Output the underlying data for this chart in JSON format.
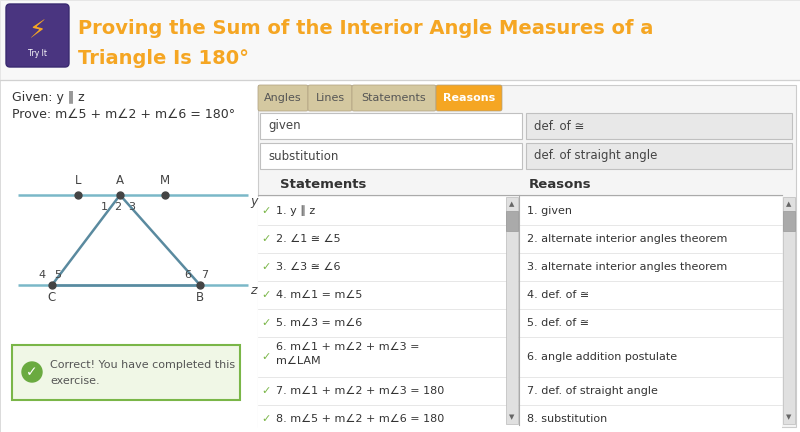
{
  "title_line1": "Proving the Sum of the Interior Angle Measures of a",
  "title_line2": "Triangle Is 180°",
  "title_color": "#f5a623",
  "header_bg": "#f8f8f8",
  "header_border": "#dddddd",
  "given_text": "Given: y ∥ z",
  "prove_text": "Prove: m∠5 + m∠2 + m∠6 = 180°",
  "tab_labels": [
    "Angles",
    "Lines",
    "Statements",
    "Reasons"
  ],
  "tab_active_color": "#f5a623",
  "tab_inactive_color": "#d4c8a0",
  "fill_row1_left": "given",
  "fill_row1_right": "def. of ≅",
  "fill_row2_left": "substitution",
  "fill_row2_right": "def. of straight angle",
  "statements": [
    "1. y ∥ z",
    "2. ∠1 ≅ ∠5",
    "3. ∠3 ≅ ∠6",
    "4. m∠1 = m∠5",
    "5. m∠3 = m∠6",
    "6. m∠1 + m∠2 + m∠3 =",
    "    m∠LAM",
    "7. m∠1 + m∠2 + m∠3 = 180",
    "8. m∠5 + m∠2 + m∠6 = 180"
  ],
  "reasons": [
    "1. given",
    "2. alternate interior angles theorem",
    "3. alternate interior angles theorem",
    "4. def. of ≅",
    "5. def. of ≅",
    "6. angle addition postulate",
    "",
    "7. def. of straight angle",
    "8. substitution"
  ],
  "correct_text_1": "Correct! You have completed this",
  "correct_text_2": "exercise.",
  "correct_bg": "#f0f7e6",
  "correct_border": "#7ab648",
  "correct_icon_color": "#6aaa40",
  "bg_color": "#ffffff",
  "content_bg": "#ffffff",
  "panel_border": "#cccccc",
  "text_color": "#333333",
  "triangle_color": "#5a8a9f",
  "line_color": "#7ab8c8",
  "dot_color": "#444444",
  "checkmark_color": "#7ab648",
  "scrollbar_track": "#e0e0e0",
  "scrollbar_thumb": "#aaaaaa"
}
